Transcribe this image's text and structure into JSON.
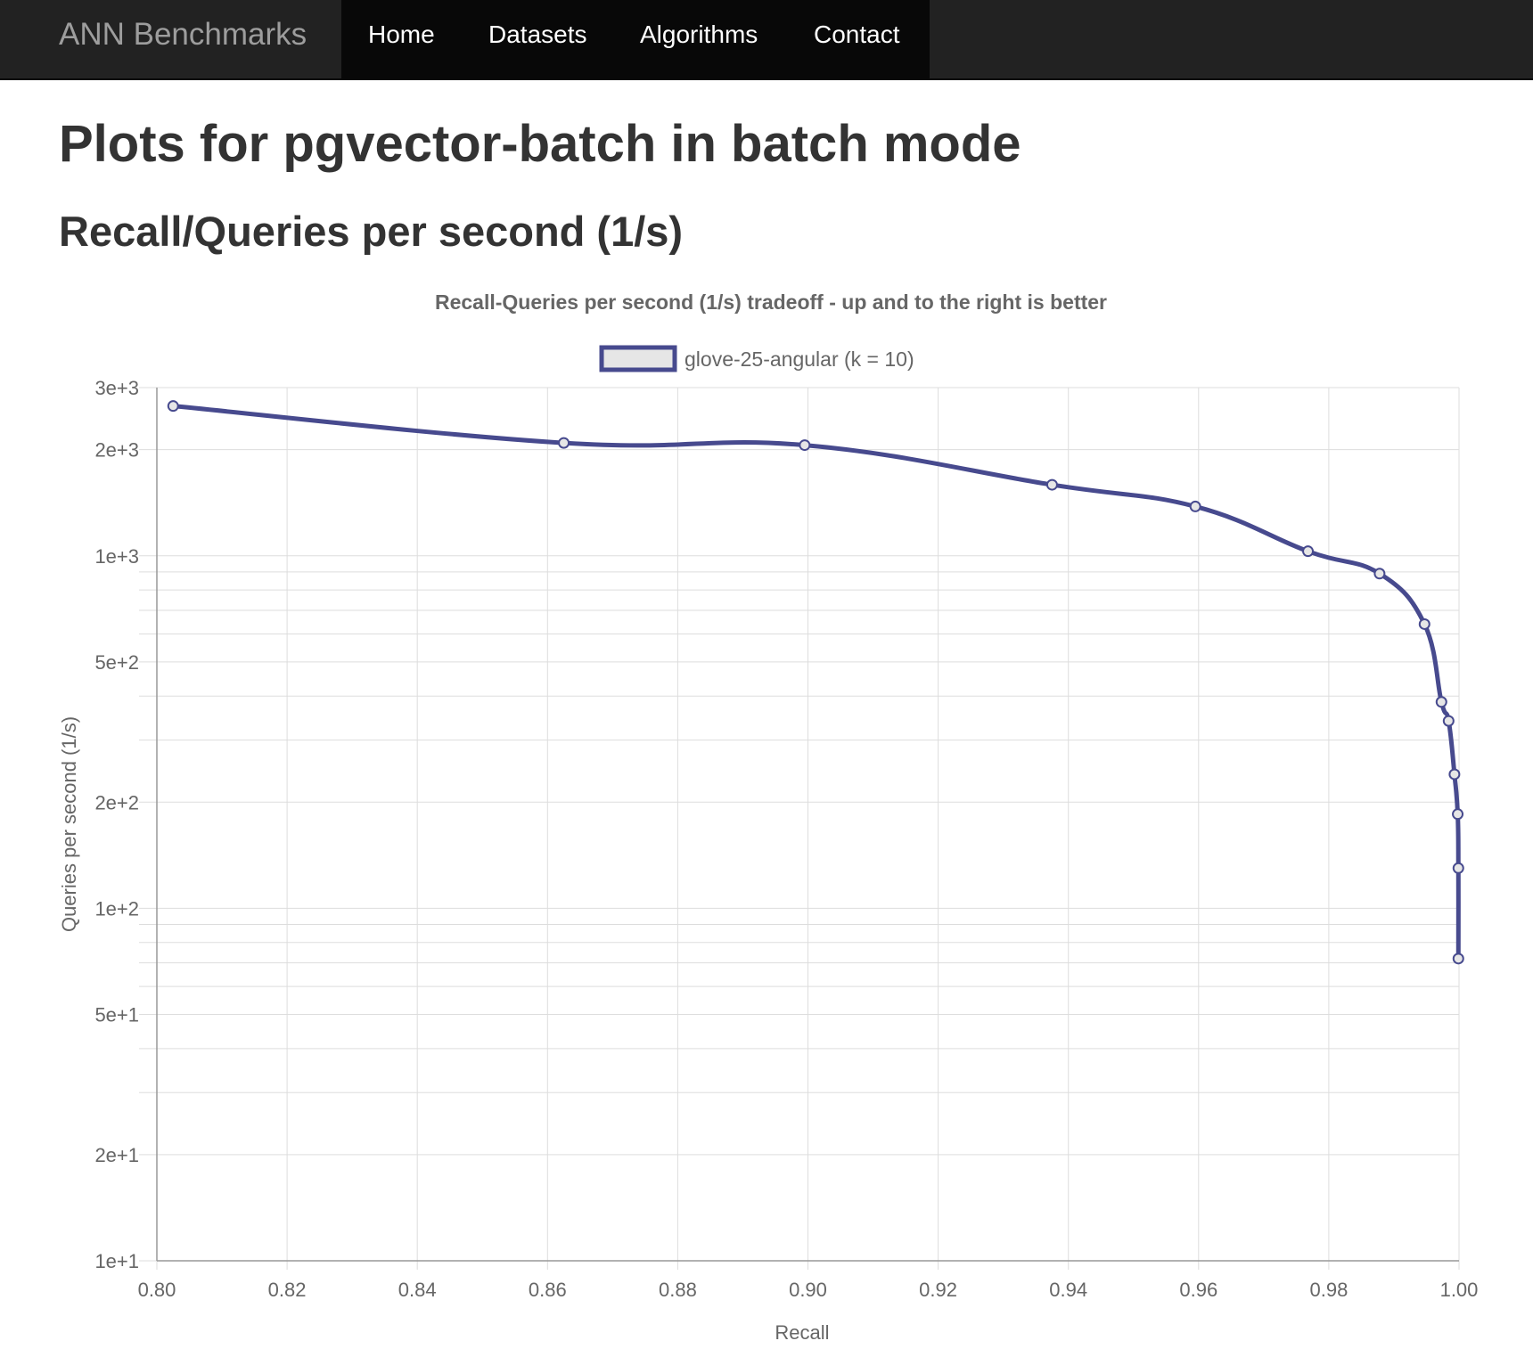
{
  "navbar": {
    "brand": "ANN Benchmarks",
    "items": [
      {
        "label": "Home"
      },
      {
        "label": "Datasets"
      },
      {
        "label": "Algorithms"
      },
      {
        "label": "Contact"
      }
    ]
  },
  "page": {
    "title": "Plots for pgvector-batch in batch mode",
    "section_title": "Recall/Queries per second (1/s)"
  },
  "colors": {
    "series_line": "#474a8e",
    "legend_fill": "#e6e6e6",
    "grid": "#dddddd",
    "navbar_bg": "#222222"
  },
  "chart_data": {
    "type": "line",
    "title": "Recall-Queries per second (1/s) tradeoff - up and to the right is better",
    "xlabel": "Recall",
    "ylabel": "Queries per second (1/s)",
    "xlim": [
      0.8,
      1.0
    ],
    "ylim": [
      10,
      3000
    ],
    "yscale": "log",
    "grid": true,
    "legend_position": "top-center",
    "x_ticks": [
      "0.80",
      "0.82",
      "0.84",
      "0.86",
      "0.88",
      "0.90",
      "0.92",
      "0.94",
      "0.96",
      "0.98",
      "1.00"
    ],
    "y_ticks": [
      {
        "value": 10,
        "label": "1e+1"
      },
      {
        "value": 20,
        "label": "2e+1"
      },
      {
        "value": 50,
        "label": "5e+1"
      },
      {
        "value": 100,
        "label": "1e+2"
      },
      {
        "value": 200,
        "label": "2e+2"
      },
      {
        "value": 500,
        "label": "5e+2"
      },
      {
        "value": 1000,
        "label": "1e+3"
      },
      {
        "value": 2000,
        "label": "2e+3"
      },
      {
        "value": 3000,
        "label": "3e+3"
      }
    ],
    "series": [
      {
        "name": "glove-25-angular (k = 10)",
        "x": [
          0.8025,
          0.8625,
          0.8995,
          0.9375,
          0.9595,
          0.9768,
          0.9878,
          0.9947,
          0.9973,
          0.9984,
          0.9993,
          0.9998,
          0.9999,
          0.9999
        ],
        "y": [
          2660,
          2090,
          2060,
          1590,
          1380,
          1030,
          890,
          640,
          385,
          340,
          240,
          185,
          130,
          72
        ]
      }
    ]
  }
}
